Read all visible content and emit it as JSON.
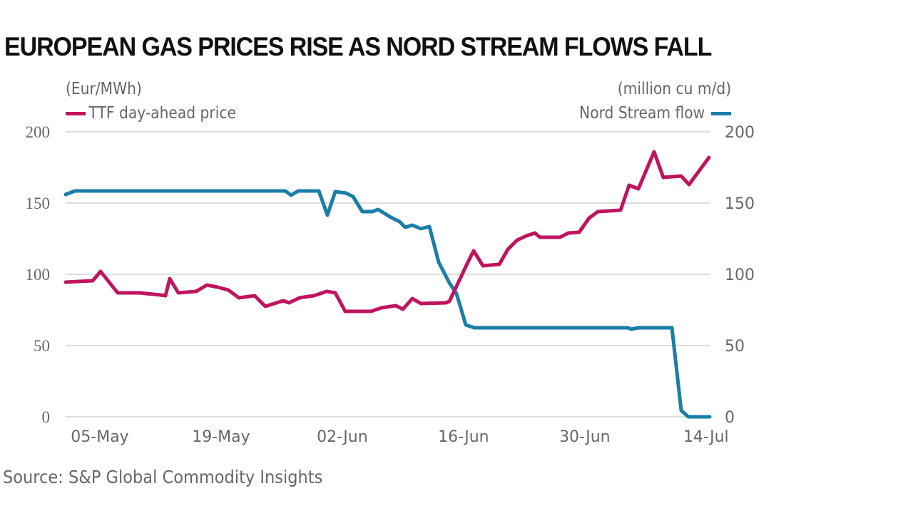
{
  "chart_data": {
    "type": "line",
    "title": "EUROPEAN GAS PRICES RISE AS NORD STREAM FLOWS FALL",
    "source": "Source: S&P Global Commodity Insights",
    "x_unit": "days since 05-May",
    "xticks": [
      {
        "label": "05-May",
        "day": 0
      },
      {
        "label": "19-May",
        "day": 14
      },
      {
        "label": "02-Jun",
        "day": 28
      },
      {
        "label": "16-Jun",
        "day": 42
      },
      {
        "label": "30-Jun",
        "day": 56
      },
      {
        "label": "14-Jul",
        "day": 70
      }
    ],
    "xlim": [
      -4,
      70.4
    ],
    "y_left": {
      "label": "(Eur/MWh)",
      "ylim": [
        0,
        200
      ],
      "ticks": [
        "0",
        "50",
        "100",
        "150",
        "200"
      ],
      "tick_values": [
        0,
        50,
        100,
        150,
        200
      ]
    },
    "y_right": {
      "label": "(million cu m/d)",
      "ylim": [
        0,
        200
      ],
      "ticks": [
        "0",
        "50",
        "100",
        "150",
        "200"
      ],
      "tick_values": [
        0,
        50,
        100,
        150,
        200
      ]
    },
    "grid": true,
    "legend": [
      {
        "name": "TTF day-ahead price",
        "position": "top-left"
      },
      {
        "name": "Nord Stream flow",
        "position": "top-right"
      }
    ],
    "series": [
      {
        "name": "TTF day-ahead price",
        "axis": "left",
        "color": "#c0145e",
        "x": [
          -3.95,
          -0.82,
          0.08,
          2.06,
          4.53,
          7.0,
          7.58,
          8.07,
          9.06,
          11.12,
          12.36,
          13.59,
          14.83,
          16.06,
          17.87,
          19.11,
          21.17,
          21.83,
          23.06,
          24.71,
          26.19,
          27.18,
          28.34,
          29.65,
          31.3,
          32.54,
          34.18,
          35.0,
          36.08,
          37.07,
          39.95,
          40.36,
          42.42,
          43.16,
          44.23,
          46.13,
          47.12,
          48.19,
          49.26,
          50.25,
          50.82,
          53.13,
          54.12,
          55.35,
          56.51,
          57.5,
          60.13,
          61.12,
          62.19,
          64.0,
          65.07,
          67.13,
          68.04,
          70.35
        ],
        "values": [
          94.5,
          95.5,
          102,
          87,
          87,
          85.5,
          85,
          97,
          87,
          88,
          92.5,
          91,
          89,
          83.5,
          85,
          77.5,
          81.5,
          80,
          83.5,
          85,
          88,
          87,
          74,
          74,
          74,
          76.5,
          78,
          75.5,
          83,
          79.5,
          80,
          81,
          107.5,
          116.5,
          106,
          107,
          117.5,
          124,
          127,
          129,
          126,
          126,
          129,
          129.5,
          139.5,
          144,
          145,
          162.5,
          160,
          186,
          168,
          169,
          163,
          182
        ]
      },
      {
        "name": "Nord Stream flow",
        "axis": "right",
        "color": "#1a7ea8",
        "x": [
          -3.95,
          -2.88,
          21.42,
          22.08,
          22.9,
          25.29,
          26.28,
          27.18,
          28.42,
          29.24,
          30.31,
          31.47,
          32.13,
          33.61,
          34.6,
          35.26,
          36.08,
          37.07,
          38.06,
          39.13,
          40.36,
          41.19,
          42.26,
          43.25,
          60.96,
          61.37,
          62.19,
          66.06,
          67.13,
          67.96,
          70.43
        ],
        "values": [
          156,
          158.5,
          158.5,
          155.5,
          158.5,
          158.5,
          141.5,
          158,
          157,
          154.5,
          144,
          144,
          145.5,
          140,
          137,
          133,
          134.5,
          132,
          133.5,
          108.5,
          94,
          86.5,
          64.5,
          62.5,
          62.5,
          61.5,
          62.5,
          62.5,
          4.5,
          0,
          0
        ]
      }
    ]
  }
}
